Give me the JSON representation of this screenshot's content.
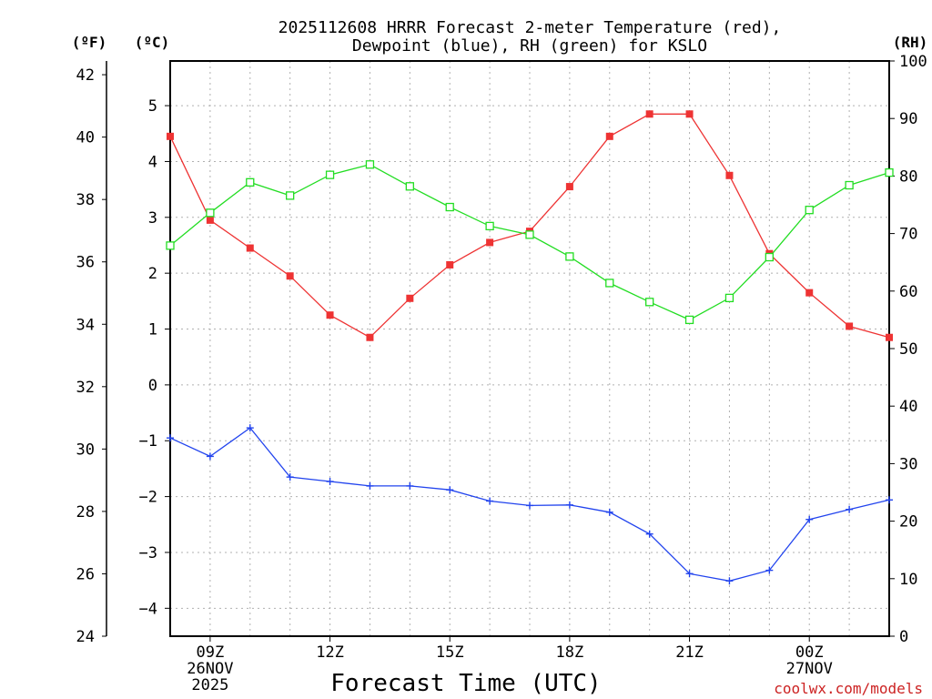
{
  "chart_data": {
    "type": "line",
    "title": {
      "line1": "2025112608 HRRR Forecast 2-meter Temperature (red),",
      "line2": "Dewpoint (blue), RH (green) for KSLO"
    },
    "xlabel": "Forecast Time (UTC)",
    "x": [
      8,
      9,
      10,
      11,
      12,
      13,
      14,
      15,
      16,
      17,
      18,
      19,
      20,
      21,
      22,
      23,
      24,
      25,
      26
    ],
    "xlim": [
      8,
      26
    ],
    "x_ticks": [
      {
        "x": 9,
        "lines": [
          "09Z",
          "26NOV",
          "2025"
        ]
      },
      {
        "x": 12,
        "lines": [
          "12Z"
        ]
      },
      {
        "x": 15,
        "lines": [
          "15Z"
        ]
      },
      {
        "x": 18,
        "lines": [
          "18Z"
        ]
      },
      {
        "x": 21,
        "lines": [
          "21Z"
        ]
      },
      {
        "x": 24,
        "lines": [
          "00Z",
          "27NOV"
        ]
      }
    ],
    "y_left_c": {
      "label": "(ºC)",
      "lim": [
        -4.5,
        5.8
      ],
      "ticks": [
        5,
        4,
        3,
        2,
        1,
        0,
        -1,
        -2,
        -3,
        -4
      ]
    },
    "y_left_f": {
      "label": "(ºF)",
      "lim": [
        24,
        42.44
      ],
      "ticks": [
        42,
        40,
        38,
        36,
        34,
        32,
        30,
        28,
        26,
        24
      ]
    },
    "y_right_rh": {
      "label": "(RH)",
      "lim": [
        0,
        100
      ],
      "ticks": [
        100,
        90,
        80,
        70,
        60,
        50,
        40,
        30,
        20,
        10,
        0
      ]
    },
    "series": [
      {
        "name": "Temperature",
        "axis": "c",
        "color": "#ee3333",
        "marker": "filled-square",
        "values": [
          4.45,
          2.95,
          2.45,
          1.95,
          1.25,
          0.85,
          1.55,
          2.15,
          2.55,
          2.75,
          3.55,
          4.45,
          4.85,
          4.85,
          3.75,
          2.35,
          1.65,
          1.05,
          0.85
        ]
      },
      {
        "name": "Dewpoint",
        "axis": "c",
        "color": "#2244ee",
        "marker": "plus",
        "values": [
          -0.95,
          -1.28,
          -0.77,
          -1.65,
          -1.73,
          -1.81,
          -1.81,
          -1.88,
          -2.08,
          -2.16,
          -2.15,
          -2.28,
          -2.67,
          -3.38,
          -3.51,
          -3.32,
          -2.41,
          -2.23,
          -2.06
        ]
      },
      {
        "name": "RH",
        "axis": "rh",
        "color": "#22dd22",
        "marker": "open-square",
        "values": [
          67.9,
          73.6,
          78.9,
          76.6,
          80.2,
          82.0,
          78.2,
          74.6,
          71.3,
          69.8,
          66.0,
          61.4,
          58.1,
          55.0,
          58.8,
          65.9,
          74.1,
          78.4,
          80.6
        ]
      }
    ],
    "grid": true,
    "credit": "coolwx.com/models"
  }
}
